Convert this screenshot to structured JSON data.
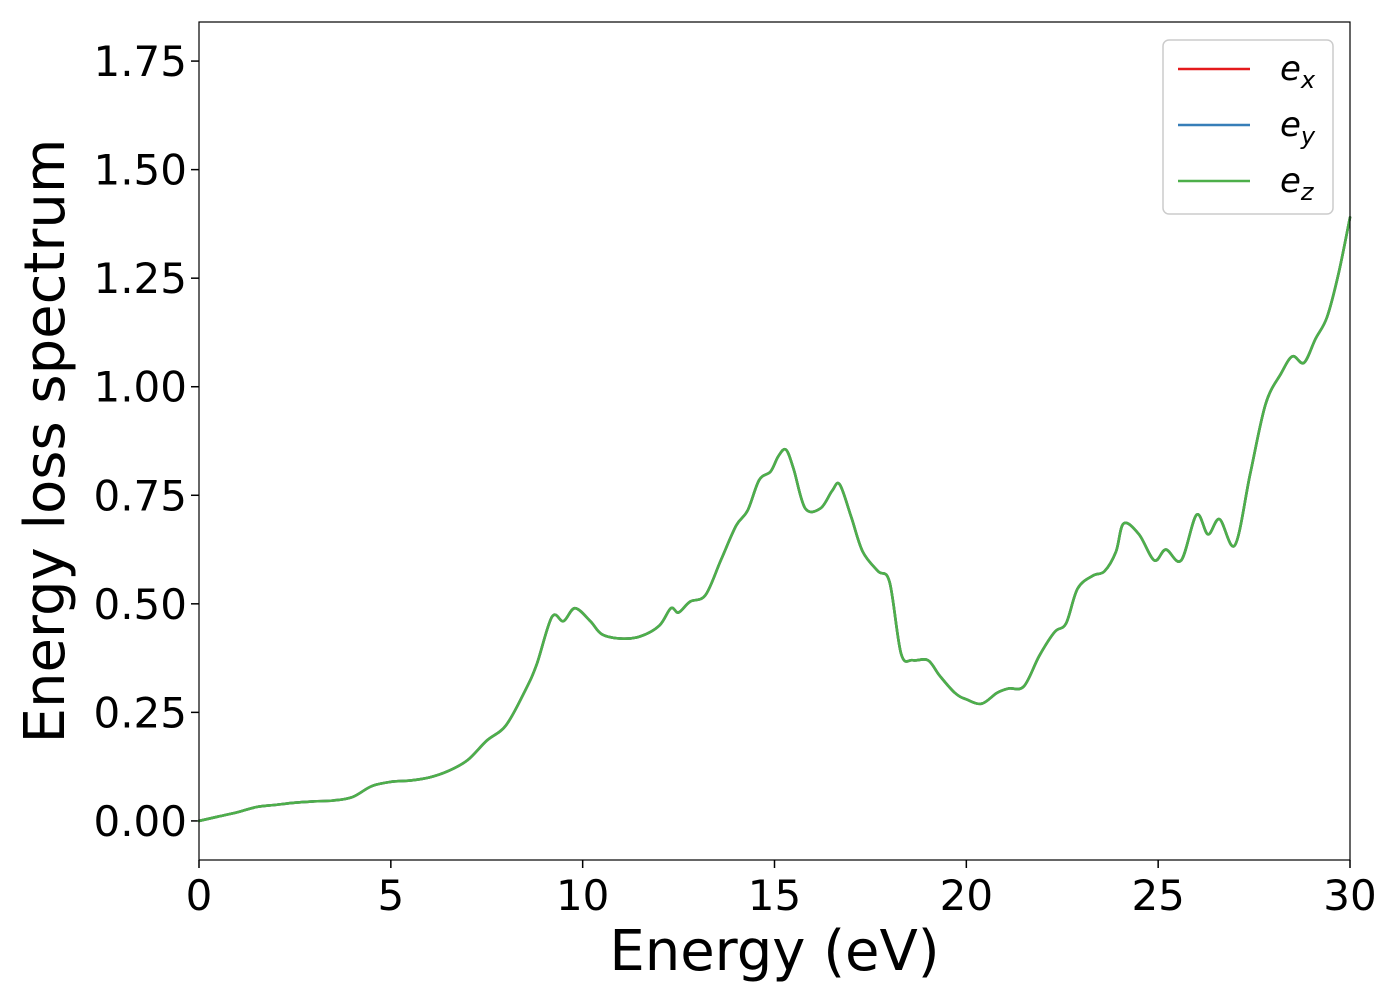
{
  "chart_data": {
    "type": "line",
    "title": "",
    "xlabel": "Energy (eV)",
    "ylabel": "Energy loss spectrum",
    "xlim": [
      0,
      30
    ],
    "ylim": [
      -0.09,
      1.84
    ],
    "xticks": [
      0,
      5,
      10,
      15,
      20,
      25,
      30
    ],
    "xtick_labels": [
      "0",
      "5",
      "10",
      "15",
      "20",
      "25",
      "30"
    ],
    "yticks": [
      0.0,
      0.25,
      0.5,
      0.75,
      1.0,
      1.25,
      1.5,
      1.75
    ],
    "ytick_labels": [
      "0.00",
      "0.25",
      "0.50",
      "0.75",
      "1.00",
      "1.25",
      "1.50",
      "1.75"
    ],
    "grid": false,
    "legend_position": "top-right",
    "x": [
      0,
      0.5,
      1.0,
      1.5,
      2.0,
      2.5,
      3.0,
      3.5,
      4.0,
      4.5,
      5.0,
      5.5,
      6.0,
      6.5,
      7.0,
      7.5,
      8.0,
      8.5,
      8.8,
      9.2,
      9.5,
      9.8,
      10.2,
      10.5,
      11.0,
      11.5,
      12.0,
      12.3,
      12.5,
      12.8,
      13.2,
      13.6,
      14.0,
      14.3,
      14.6,
      14.9,
      15.1,
      15.3,
      15.5,
      15.8,
      16.2,
      16.5,
      16.7,
      17.0,
      17.3,
      17.7,
      18.0,
      18.3,
      18.6,
      19.0,
      19.3,
      19.7,
      20.0,
      20.4,
      20.8,
      21.1,
      21.5,
      21.9,
      22.3,
      22.6,
      22.9,
      23.3,
      23.6,
      23.9,
      24.1,
      24.5,
      24.9,
      25.2,
      25.6,
      26.0,
      26.3,
      26.6,
      27.0,
      27.4,
      27.8,
      28.2,
      28.5,
      28.8,
      29.1,
      29.4,
      29.7,
      30.0
    ],
    "series": [
      {
        "name": "e",
        "subscript": "x",
        "color": "#e41a1c",
        "values": [
          0.0,
          0.01,
          0.02,
          0.032,
          0.037,
          0.042,
          0.045,
          0.047,
          0.055,
          0.08,
          0.09,
          0.093,
          0.1,
          0.115,
          0.14,
          0.185,
          0.22,
          0.3,
          0.36,
          0.47,
          0.46,
          0.49,
          0.46,
          0.43,
          0.42,
          0.425,
          0.45,
          0.49,
          0.48,
          0.505,
          0.52,
          0.6,
          0.68,
          0.715,
          0.785,
          0.805,
          0.84,
          0.855,
          0.81,
          0.72,
          0.72,
          0.76,
          0.775,
          0.7,
          0.62,
          0.575,
          0.55,
          0.385,
          0.37,
          0.37,
          0.335,
          0.295,
          0.28,
          0.27,
          0.295,
          0.305,
          0.31,
          0.38,
          0.435,
          0.455,
          0.535,
          0.565,
          0.575,
          0.62,
          0.685,
          0.66,
          0.6,
          0.625,
          0.6,
          0.705,
          0.66,
          0.695,
          0.635,
          0.8,
          0.96,
          1.03,
          1.07,
          1.055,
          1.11,
          1.16,
          1.26,
          1.39
        ]
      },
      {
        "name": "e",
        "subscript": "y",
        "color": "#377eb8",
        "values": [
          0.0,
          0.01,
          0.02,
          0.032,
          0.037,
          0.042,
          0.045,
          0.047,
          0.055,
          0.08,
          0.09,
          0.093,
          0.1,
          0.115,
          0.14,
          0.185,
          0.22,
          0.3,
          0.36,
          0.47,
          0.46,
          0.49,
          0.46,
          0.43,
          0.42,
          0.425,
          0.45,
          0.49,
          0.48,
          0.505,
          0.52,
          0.6,
          0.68,
          0.715,
          0.785,
          0.805,
          0.84,
          0.855,
          0.81,
          0.72,
          0.72,
          0.76,
          0.775,
          0.7,
          0.62,
          0.575,
          0.55,
          0.385,
          0.37,
          0.37,
          0.335,
          0.295,
          0.28,
          0.27,
          0.295,
          0.305,
          0.31,
          0.38,
          0.435,
          0.455,
          0.535,
          0.565,
          0.575,
          0.62,
          0.685,
          0.66,
          0.6,
          0.625,
          0.6,
          0.705,
          0.66,
          0.695,
          0.635,
          0.8,
          0.96,
          1.03,
          1.07,
          1.055,
          1.11,
          1.16,
          1.26,
          1.39
        ]
      },
      {
        "name": "e",
        "subscript": "z",
        "color": "#4daf4a",
        "values": [
          0.0,
          0.01,
          0.02,
          0.032,
          0.037,
          0.042,
          0.045,
          0.047,
          0.055,
          0.08,
          0.09,
          0.093,
          0.1,
          0.115,
          0.14,
          0.185,
          0.22,
          0.3,
          0.36,
          0.47,
          0.46,
          0.49,
          0.46,
          0.43,
          0.42,
          0.425,
          0.45,
          0.49,
          0.48,
          0.505,
          0.52,
          0.6,
          0.68,
          0.715,
          0.785,
          0.805,
          0.84,
          0.855,
          0.81,
          0.72,
          0.72,
          0.76,
          0.775,
          0.7,
          0.62,
          0.575,
          0.55,
          0.385,
          0.37,
          0.37,
          0.335,
          0.295,
          0.28,
          0.27,
          0.295,
          0.305,
          0.31,
          0.38,
          0.435,
          0.455,
          0.535,
          0.565,
          0.575,
          0.62,
          0.685,
          0.66,
          0.6,
          0.625,
          0.6,
          0.705,
          0.66,
          0.695,
          0.635,
          0.8,
          0.96,
          1.03,
          1.07,
          1.055,
          1.11,
          1.16,
          1.26,
          1.39
        ]
      }
    ]
  }
}
